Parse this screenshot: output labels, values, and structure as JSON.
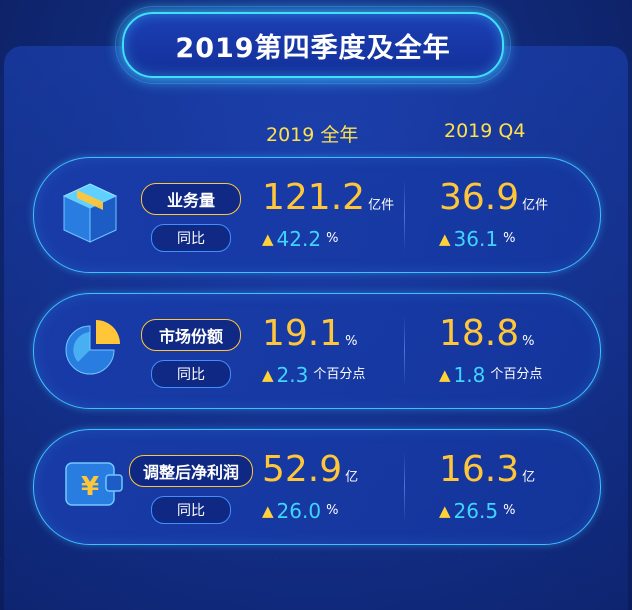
{
  "title": "2019第四季度及全年",
  "columns": {
    "full_year": "2019 全年",
    "q4": "2019 Q4"
  },
  "yoy_label": "同比",
  "rows": [
    {
      "label": "业务量",
      "icon": "package-box-icon",
      "full_year": {
        "value": "121.2",
        "unit": "亿件",
        "change": "42.2",
        "change_unit": "%"
      },
      "q4": {
        "value": "36.9",
        "unit": "亿件",
        "change": "36.1",
        "change_unit": "%"
      }
    },
    {
      "label": "市场份额",
      "icon": "pie-chart-icon",
      "full_year": {
        "value": "19.1",
        "unit": "%",
        "change": "2.3",
        "change_unit": "个百分点"
      },
      "q4": {
        "value": "18.8",
        "unit": "%",
        "change": "1.8",
        "change_unit": "个百分点"
      }
    },
    {
      "label": "调整后净利润",
      "icon": "yuan-wallet-icon",
      "full_year": {
        "value": "52.9",
        "unit": "亿",
        "change": "26.0",
        "change_unit": "%"
      },
      "q4": {
        "value": "16.3",
        "unit": "亿",
        "change": "26.5",
        "change_unit": "%"
      }
    }
  ],
  "colors": {
    "accent_gold": "#ffc63a",
    "accent_cyan": "#3fd4ff",
    "background": "#112a7a"
  }
}
